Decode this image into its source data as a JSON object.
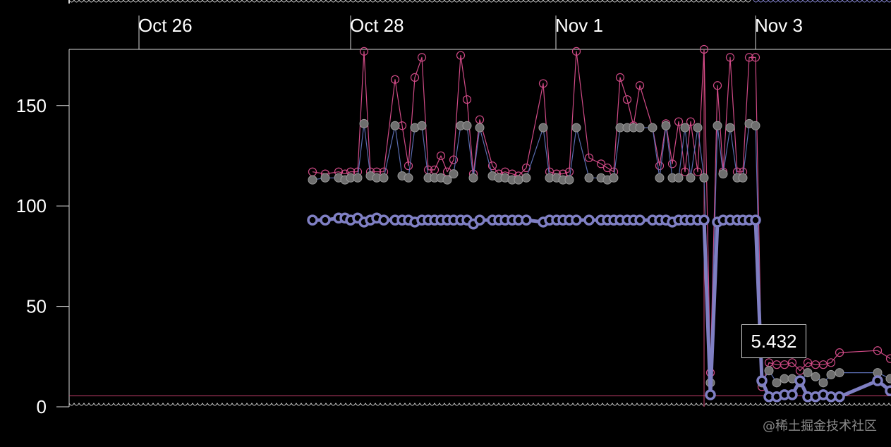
{
  "chart_data": {
    "type": "line",
    "x_ticks": [
      "Oct 26",
      "Oct 28",
      "Nov 1",
      "Nov 3"
    ],
    "y_ticks": [
      0,
      50,
      100,
      150
    ],
    "ylim": [
      0,
      178
    ],
    "reference_line": 5.432,
    "tooltip_value": "5.432",
    "series": [
      {
        "color": "#d04a86",
        "values": [
          117,
          116,
          117,
          116,
          117,
          117,
          177,
          117,
          117,
          117,
          163,
          140,
          120,
          164,
          174,
          118,
          118,
          125,
          117,
          123,
          175,
          153,
          116,
          143,
          120,
          116,
          117,
          116,
          115,
          119,
          161,
          117,
          116,
          116,
          117,
          177,
          124,
          121,
          119,
          117,
          164,
          153,
          140,
          160,
          139,
          120,
          141,
          121,
          142,
          117,
          142,
          117,
          178,
          17,
          160,
          117,
          174,
          117,
          117,
          174,
          174,
          10,
          22,
          21,
          21,
          22,
          18,
          22,
          21,
          21,
          22,
          27,
          28,
          24
        ],
        "marker": "hollow-circle"
      },
      {
        "color": "#5a6cb0",
        "values": [
          113,
          114,
          114,
          113,
          114,
          114,
          141,
          115,
          114,
          114,
          140,
          115,
          114,
          139,
          140,
          114,
          114,
          114,
          113,
          116,
          140,
          140,
          114,
          139,
          115,
          114,
          114,
          113,
          113,
          114,
          139,
          114,
          114,
          113,
          113,
          139,
          114,
          114,
          113,
          114,
          139,
          139,
          139,
          139,
          139,
          114,
          140,
          114,
          114,
          139,
          114,
          139,
          114,
          12,
          140,
          116,
          139,
          114,
          114,
          141,
          140,
          12,
          18,
          12,
          14,
          14,
          12,
          17,
          15,
          12,
          16,
          17,
          17,
          14
        ],
        "marker": "grey-dot"
      },
      {
        "color": "#7f7fc3",
        "values": [
          93,
          93,
          94,
          94,
          93,
          94,
          92,
          93,
          94,
          93,
          93,
          93,
          93,
          92,
          93,
          93,
          93,
          93,
          93,
          93,
          93,
          93,
          91,
          93,
          93,
          93,
          93,
          93,
          93,
          93,
          92,
          93,
          93,
          93,
          93,
          93,
          93,
          93,
          93,
          93,
          93,
          93,
          93,
          93,
          93,
          93,
          93,
          92,
          93,
          93,
          93,
          93,
          93,
          6,
          92,
          93,
          93,
          93,
          93,
          93,
          93,
          13,
          5,
          5,
          6,
          6,
          13,
          5,
          5,
          6,
          5,
          5,
          13,
          8
        ],
        "marker": "thick-ring"
      }
    ]
  },
  "watermark": "@稀土掘金技术社区"
}
